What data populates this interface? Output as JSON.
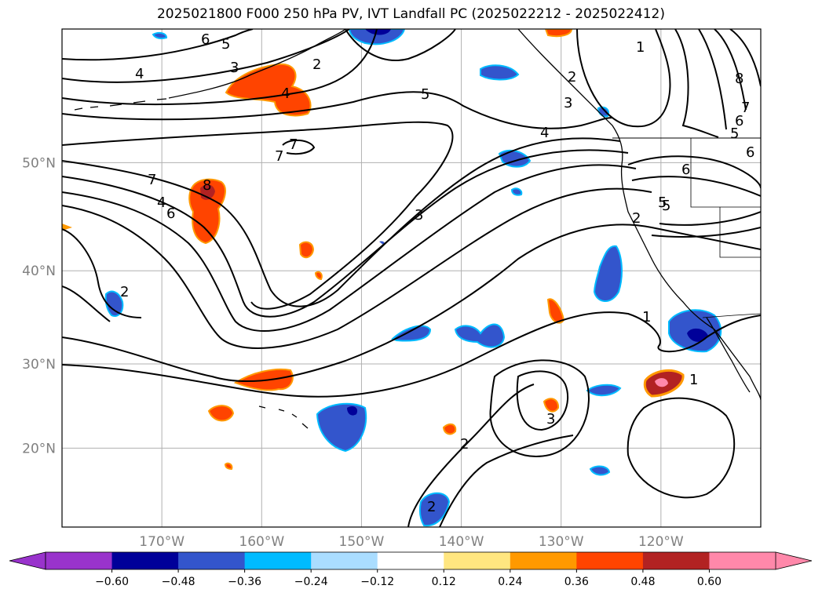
{
  "title": "2025021800 F000 250 hPa PV, IVT Landfall PC (2025022212 - 2025022412)",
  "lat_labels": [
    "50°N",
    "40°N",
    "30°N",
    "20°N"
  ],
  "lon_labels": [
    "170°W",
    "160°W",
    "150°W",
    "140°W",
    "130°W",
    "120°W"
  ],
  "map_extent": {
    "lon_min": -180,
    "lon_max": -110,
    "lat_min": 10,
    "lat_max": 60
  },
  "gridlines": {
    "lat": [
      20,
      30,
      40,
      50
    ],
    "lon": [
      -170,
      -160,
      -150,
      -140,
      -130,
      -120
    ]
  },
  "colorbar": {
    "ticks": [
      "−0.60",
      "−0.48",
      "−0.36",
      "−0.24",
      "−0.12",
      "0.12",
      "0.24",
      "0.36",
      "0.48",
      "0.60"
    ],
    "colors": [
      "#9933cc",
      "#000099",
      "#3355cc",
      "#00bbff",
      "#aaddff",
      "#ffffff",
      "#ffe680",
      "#ff9900",
      "#ff4400",
      "#b22222",
      "#ff88aa"
    ],
    "extend": "both"
  },
  "contour_labels": [
    "6",
    "5",
    "4",
    "3",
    "2",
    "4",
    "5",
    "1",
    "2",
    "3",
    "8",
    "7",
    "6",
    "5",
    "4",
    "7",
    "7",
    "6",
    "7",
    "6",
    "8",
    "5",
    "4",
    "3",
    "6",
    "5",
    "2",
    "2",
    "1",
    "1",
    "3",
    "2",
    "2"
  ]
}
